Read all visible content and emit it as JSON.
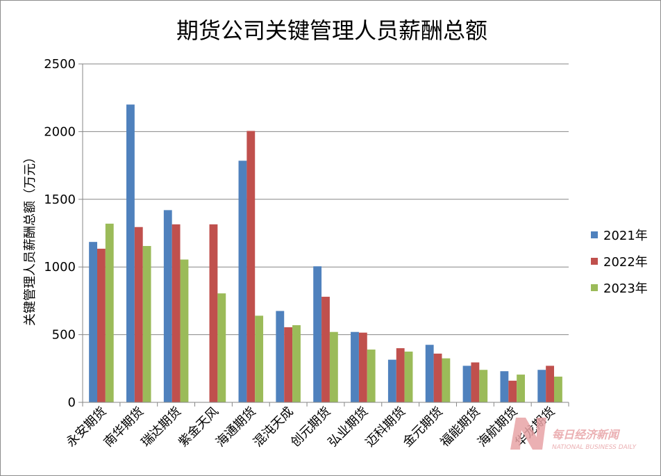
{
  "chart_data": {
    "type": "bar",
    "title": "期货公司关键管理人员薪酬总额",
    "xlabel": "",
    "ylabel": "关键管理人员薪酬总额（万元）",
    "ylim": [
      0,
      2500
    ],
    "yticks": [
      0,
      500,
      1000,
      1500,
      2000,
      2500
    ],
    "grid": true,
    "legend_position": "right",
    "categories": [
      "永安期货",
      "南华期货",
      "瑞达期货",
      "紫金天风",
      "海通期货",
      "混沌天成",
      "创元期货",
      "弘业期货",
      "迈科期货",
      "金元期货",
      "福能期货",
      "海航期货",
      "华龙期货"
    ],
    "series": [
      {
        "name": "2021年",
        "color": "#4f81bd",
        "values": [
          1185,
          2200,
          1420,
          null,
          1785,
          675,
          1005,
          520,
          315,
          425,
          270,
          230,
          240
        ]
      },
      {
        "name": "2022年",
        "color": "#c0504d",
        "values": [
          1135,
          1295,
          1315,
          1315,
          2005,
          555,
          780,
          515,
          400,
          360,
          295,
          160,
          270
        ]
      },
      {
        "name": "2023年",
        "color": "#9bbb59",
        "values": [
          1320,
          1155,
          1055,
          805,
          640,
          570,
          520,
          390,
          375,
          325,
          240,
          205,
          190
        ]
      }
    ]
  },
  "watermark": {
    "logo_letter": "N",
    "name_cn": "每日经济新闻",
    "name_en": "NATIONAL BUSINESS DAILY",
    "color": "#e8a3a6"
  }
}
